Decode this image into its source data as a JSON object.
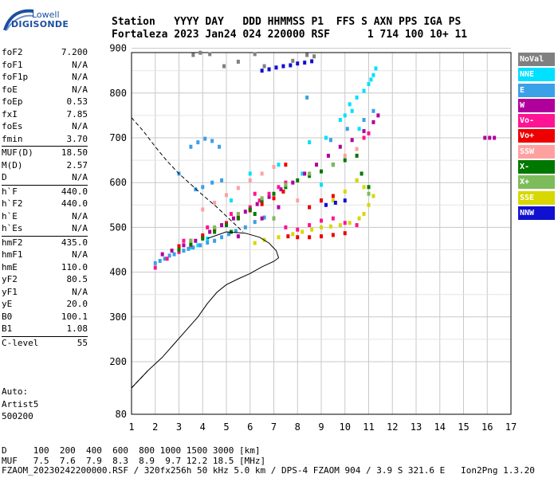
{
  "logo": {
    "line1": "Lowell",
    "line2": "DIGISONDE"
  },
  "header": {
    "line1": "Station   YYYY DAY   DDD HHMMSS P1  FFS S AXN PPS IGA PS",
    "line2": "Fortaleza 2023 Jan24 024 220000 RSF      1 714 100 10+ 11"
  },
  "params": [
    [
      {
        "k": "foF2",
        "v": "7.200"
      },
      {
        "k": "foF1",
        "v": "N/A"
      },
      {
        "k": "foF1p",
        "v": "N/A"
      },
      {
        "k": "foE",
        "v": "N/A"
      },
      {
        "k": "foEp",
        "v": "0.53"
      },
      {
        "k": "fxI",
        "v": "7.85"
      },
      {
        "k": "foEs",
        "v": "N/A"
      },
      {
        "k": "fmin",
        "v": "3.70"
      }
    ],
    [
      {
        "k": "MUF(D)",
        "v": "18.50"
      },
      {
        "k": "M(D)",
        "v": "2.57"
      },
      {
        "k": "D",
        "v": "N/A"
      }
    ],
    [
      {
        "k": "h`F",
        "v": "440.0"
      },
      {
        "k": "h`F2",
        "v": "440.0"
      },
      {
        "k": "h`E",
        "v": "N/A"
      },
      {
        "k": "h`Es",
        "v": "N/A"
      }
    ],
    [
      {
        "k": "hmF2",
        "v": "435.0"
      },
      {
        "k": "hmF1",
        "v": "N/A"
      },
      {
        "k": "hmE",
        "v": "110.0"
      },
      {
        "k": "yF2",
        "v": "80.5"
      },
      {
        "k": "yF1",
        "v": "N/A"
      },
      {
        "k": "yE",
        "v": "20.0"
      },
      {
        "k": "B0",
        "v": "100.1"
      },
      {
        "k": "B1",
        "v": "1.08"
      }
    ],
    [
      {
        "k": "C-level",
        "v": "55"
      }
    ]
  ],
  "auto": {
    "line1": "Auto:",
    "line2": "Artist5",
    "line3": "500200"
  },
  "legend": [
    {
      "label": "NoVal",
      "color": "#808080"
    },
    {
      "label": "NNE",
      "color": "#00e0ff"
    },
    {
      "label": "E",
      "color": "#3aa0e8"
    },
    {
      "label": "W",
      "color": "#b0009c"
    },
    {
      "label": "Vo-",
      "color": "#ff1493"
    },
    {
      "label": "Vo+",
      "color": "#ee0000"
    },
    {
      "label": "SSW",
      "color": "#ffa0a0"
    },
    {
      "label": "X-",
      "color": "#007800"
    },
    {
      "label": "X+",
      "color": "#7cbc5a"
    },
    {
      "label": "SSE",
      "color": "#d8d800"
    },
    {
      "label": "NNW",
      "color": "#1010d0"
    }
  ],
  "footer": {
    "line1": "D     100  200  400  600  800 1000 1500 3000 [km]",
    "line2": "MUF   7.5  7.6  7.9  8.3  8.9  9.7 12.2 18.5 [MHz]",
    "line3": "FZAOM_20230242200000.RSF / 320fx256h 50 kHz 5.0 km / DPS-4 FZAOM 904 / 3.9 S 321.6 E   Ion2Png 1.3.20"
  },
  "chart_data": {
    "type": "scatter",
    "xlim": [
      1,
      17
    ],
    "ylim": [
      80,
      900
    ],
    "x_ticks": [
      1,
      2,
      3,
      4,
      5,
      6,
      7,
      8,
      9,
      10,
      11,
      12,
      13,
      14,
      15,
      16,
      17
    ],
    "y_ticks": [
      80,
      200,
      300,
      400,
      500,
      600,
      700,
      800,
      900
    ],
    "grid": true,
    "legend_placement": "right",
    "profile_solid": [
      [
        1,
        140
      ],
      [
        1.7,
        180
      ],
      [
        2.3,
        210
      ],
      [
        2.8,
        240
      ],
      [
        3.3,
        270
      ],
      [
        3.8,
        300
      ],
      [
        4.2,
        330
      ],
      [
        4.6,
        355
      ],
      [
        5,
        372
      ],
      [
        5.5,
        385
      ],
      [
        6,
        397
      ],
      [
        6.5,
        412
      ],
      [
        7,
        424
      ],
      [
        7.2,
        432
      ],
      [
        7.1,
        448
      ],
      [
        6.8,
        465
      ],
      [
        6.4,
        478
      ],
      [
        5.8,
        487
      ],
      [
        5,
        490
      ],
      [
        4.2,
        475
      ]
    ],
    "profile_dashed_lower": [
      [
        1,
        140
      ],
      [
        1.4,
        163
      ],
      [
        1.7,
        180
      ]
    ],
    "profile_dashed_upper": [
      [
        1,
        745
      ],
      [
        1.5,
        715
      ],
      [
        2,
        680
      ],
      [
        2.5,
        648
      ],
      [
        3,
        620
      ],
      [
        3.5,
        596
      ],
      [
        4,
        572
      ],
      [
        4.6,
        545
      ],
      [
        5,
        525
      ],
      [
        5.4,
        505
      ],
      [
        5.7,
        490
      ]
    ],
    "traces": [
      {
        "name": "NoVal",
        "color": "#808080",
        "points": [
          [
            3.6,
            885
          ],
          [
            3.9,
            890
          ],
          [
            4.3,
            887
          ],
          [
            6.2,
            887
          ],
          [
            8.4,
            885
          ],
          [
            8.7,
            882
          ],
          [
            5.5,
            870
          ],
          [
            7.8,
            872
          ],
          [
            4.9,
            860
          ],
          [
            6.6,
            860
          ]
        ]
      },
      {
        "name": "NNE",
        "color": "#00e0ff",
        "points": [
          [
            10.2,
            775
          ],
          [
            10.5,
            790
          ],
          [
            10.8,
            805
          ],
          [
            11,
            820
          ],
          [
            11.2,
            840
          ],
          [
            11.3,
            855
          ],
          [
            11.1,
            830
          ],
          [
            10.3,
            760
          ],
          [
            10,
            750
          ],
          [
            9.8,
            740
          ],
          [
            10.6,
            720
          ],
          [
            8.5,
            690
          ],
          [
            9.2,
            700
          ],
          [
            3.5,
            455
          ],
          [
            3.8,
            460
          ],
          [
            4.2,
            475
          ],
          [
            5.2,
            560
          ],
          [
            6,
            620
          ],
          [
            7.2,
            640
          ],
          [
            8.2,
            620
          ],
          [
            9,
            595
          ]
        ]
      },
      {
        "name": "E",
        "color": "#3aa0e8",
        "points": [
          [
            2,
            420
          ],
          [
            2.2,
            425
          ],
          [
            2.4,
            430
          ],
          [
            2.6,
            437
          ],
          [
            2.8,
            440
          ],
          [
            3,
            445
          ],
          [
            3.2,
            448
          ],
          [
            3.4,
            452
          ],
          [
            3.6,
            455
          ],
          [
            3.9,
            460
          ],
          [
            4.2,
            466
          ],
          [
            4.5,
            470
          ],
          [
            4.8,
            478
          ],
          [
            5.1,
            485
          ],
          [
            5.4,
            492
          ],
          [
            5.8,
            500
          ],
          [
            6.2,
            512
          ],
          [
            6.6,
            522
          ],
          [
            3.5,
            680
          ],
          [
            3.8,
            690
          ],
          [
            4.1,
            698
          ],
          [
            4.4,
            693
          ],
          [
            4.7,
            680
          ],
          [
            3.7,
            585
          ],
          [
            4,
            590
          ],
          [
            4.4,
            600
          ],
          [
            4.8,
            605
          ],
          [
            3,
            620
          ],
          [
            9.4,
            695
          ],
          [
            10.1,
            720
          ],
          [
            10.8,
            740
          ],
          [
            11.2,
            760
          ],
          [
            8.4,
            790
          ]
        ]
      },
      {
        "name": "W",
        "color": "#b0009c",
        "points": [
          [
            2.3,
            440
          ],
          [
            2.7,
            448
          ],
          [
            3.2,
            460
          ],
          [
            3.7,
            470
          ],
          [
            4.3,
            490
          ],
          [
            4.8,
            505
          ],
          [
            5.3,
            520
          ],
          [
            5.8,
            535
          ],
          [
            6.3,
            552
          ],
          [
            6.8,
            568
          ],
          [
            7.3,
            585
          ],
          [
            7.8,
            600
          ],
          [
            8.3,
            620
          ],
          [
            8.8,
            640
          ],
          [
            9.3,
            660
          ],
          [
            9.8,
            680
          ],
          [
            10.3,
            695
          ],
          [
            10.8,
            715
          ],
          [
            11.2,
            735
          ],
          [
            11.4,
            750
          ],
          [
            15.9,
            700
          ],
          [
            16.1,
            700
          ],
          [
            16.3,
            700
          ],
          [
            7.2,
            545
          ],
          [
            6.5,
            520
          ],
          [
            5.5,
            480
          ],
          [
            9,
            560
          ]
        ]
      },
      {
        "name": "Vo-",
        "color": "#ff1493",
        "points": [
          [
            2,
            410
          ],
          [
            2.5,
            430
          ],
          [
            3,
            445
          ],
          [
            3.5,
            460
          ],
          [
            4,
            478
          ],
          [
            4.5,
            495
          ],
          [
            5,
            510
          ],
          [
            5.5,
            528
          ],
          [
            6,
            545
          ],
          [
            6.4,
            560
          ],
          [
            6.8,
            575
          ],
          [
            7.2,
            590
          ],
          [
            7.5,
            600
          ],
          [
            3.2,
            470
          ],
          [
            4.2,
            500
          ],
          [
            5.2,
            530
          ],
          [
            6.2,
            575
          ],
          [
            7,
            520
          ],
          [
            7.5,
            500
          ],
          [
            8,
            495
          ],
          [
            8.5,
            505
          ],
          [
            9,
            515
          ],
          [
            9.5,
            520
          ],
          [
            10,
            510
          ],
          [
            10.5,
            505
          ],
          [
            10.8,
            700
          ],
          [
            11,
            710
          ]
        ]
      },
      {
        "name": "Vo+",
        "color": "#ee0000",
        "points": [
          [
            3,
            458
          ],
          [
            3.5,
            470
          ],
          [
            4,
            482
          ],
          [
            4.5,
            496
          ],
          [
            5,
            508
          ],
          [
            5.5,
            522
          ],
          [
            6,
            538
          ],
          [
            6.5,
            552
          ],
          [
            7,
            565
          ],
          [
            7.4,
            580
          ],
          [
            7.6,
            480
          ],
          [
            8,
            478
          ],
          [
            8.5,
            478
          ],
          [
            9,
            480
          ],
          [
            9.5,
            483
          ],
          [
            10,
            487
          ],
          [
            8.5,
            545
          ],
          [
            9,
            560
          ],
          [
            9.5,
            570
          ],
          [
            7.5,
            640
          ]
        ]
      },
      {
        "name": "SSW",
        "color": "#ffa0a0",
        "points": [
          [
            4,
            540
          ],
          [
            4.5,
            555
          ],
          [
            5,
            572
          ],
          [
            5.5,
            588
          ],
          [
            6,
            605
          ],
          [
            6.5,
            620
          ],
          [
            7,
            635
          ],
          [
            9.5,
            640
          ],
          [
            10,
            660
          ],
          [
            10.5,
            675
          ],
          [
            8,
            560
          ]
        ]
      },
      {
        "name": "X-",
        "color": "#007800",
        "points": [
          [
            3,
            450
          ],
          [
            3.5,
            462
          ],
          [
            4,
            475
          ],
          [
            4.5,
            490
          ],
          [
            5,
            505
          ],
          [
            5.5,
            520
          ],
          [
            6,
            540
          ],
          [
            6.5,
            560
          ],
          [
            7,
            575
          ],
          [
            7.5,
            590
          ],
          [
            8,
            605
          ],
          [
            8.5,
            615
          ],
          [
            9,
            625
          ],
          [
            9.5,
            640
          ],
          [
            10,
            650
          ],
          [
            10.5,
            660
          ],
          [
            10.7,
            620
          ],
          [
            11,
            590
          ],
          [
            5.2,
            490
          ],
          [
            6.2,
            530
          ]
        ]
      },
      {
        "name": "X+",
        "color": "#7cbc5a",
        "points": [
          [
            3.5,
            470
          ],
          [
            4.5,
            500
          ],
          [
            5.5,
            530
          ],
          [
            6.5,
            565
          ],
          [
            7.5,
            595
          ],
          [
            8.5,
            620
          ],
          [
            9.5,
            640
          ],
          [
            10.5,
            605
          ],
          [
            11,
            575
          ],
          [
            7,
            520
          ]
        ]
      },
      {
        "name": "SSE",
        "color": "#d8d800",
        "points": [
          [
            6.2,
            465
          ],
          [
            6.6,
            472
          ],
          [
            7.2,
            478
          ],
          [
            7.8,
            485
          ],
          [
            8.2,
            490
          ],
          [
            8.6,
            495
          ],
          [
            9,
            500
          ],
          [
            9.4,
            502
          ],
          [
            9.8,
            505
          ],
          [
            10.2,
            510
          ],
          [
            10.6,
            520
          ],
          [
            10.8,
            530
          ],
          [
            11,
            550
          ],
          [
            11.2,
            570
          ],
          [
            10.8,
            590
          ],
          [
            10.5,
            605
          ],
          [
            9.5,
            560
          ],
          [
            10,
            580
          ]
        ]
      },
      {
        "name": "NNW",
        "color": "#1010d0",
        "points": [
          [
            6.5,
            850
          ],
          [
            6.8,
            853
          ],
          [
            7.1,
            857
          ],
          [
            7.4,
            860
          ],
          [
            7.7,
            862
          ],
          [
            8,
            866
          ],
          [
            8.3,
            868
          ],
          [
            8.6,
            871
          ],
          [
            9.2,
            550
          ],
          [
            9.6,
            555
          ],
          [
            10,
            560
          ]
        ]
      }
    ]
  }
}
